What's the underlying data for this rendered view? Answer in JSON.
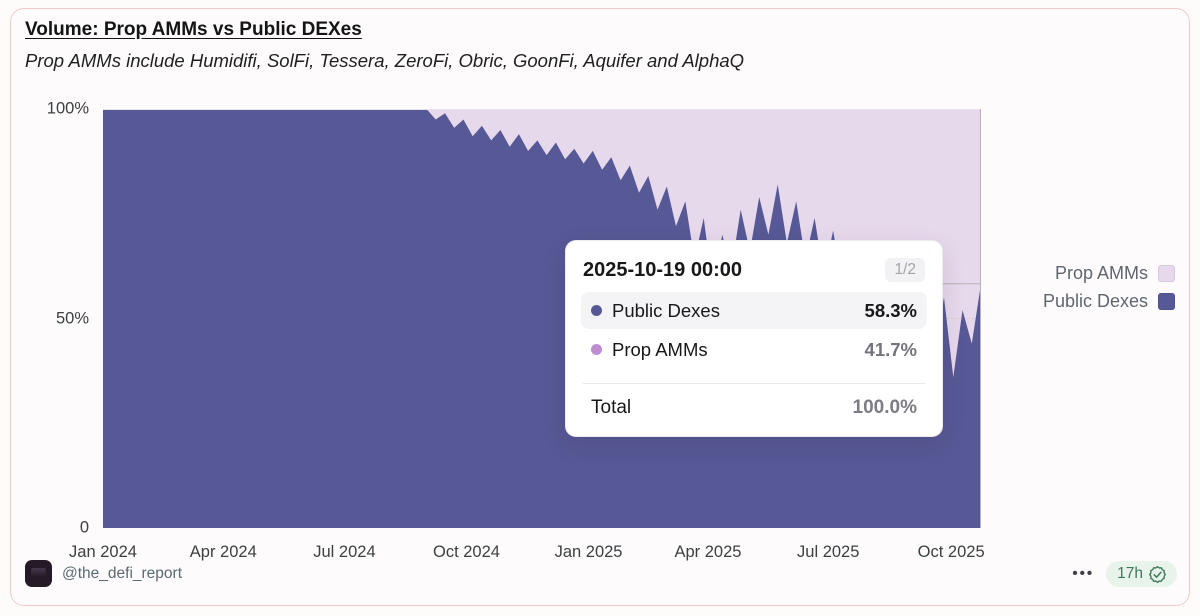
{
  "card": {
    "title": "Volume: Prop AMMs vs Public DEXes",
    "subtitle": "Prop AMMs include Humidifi, SolFi, Tessera, ZeroFi, Obric, GoonFi, Aquifer and AlphaQ"
  },
  "chart_data": {
    "type": "area",
    "stacking": "percent",
    "title": "Volume: Prop AMMs vs Public DEXes",
    "xlabel": "",
    "ylabel": "",
    "ylim": [
      0,
      100
    ],
    "grid": "50% gridline only",
    "legend_position": "right",
    "x_range": [
      "Jan 2024",
      "Oct 2025"
    ],
    "x_ticks": [
      {
        "label": "Jan 2024",
        "pos": 0.0
      },
      {
        "label": "Apr 2024",
        "pos": 0.137
      },
      {
        "label": "Jul 2024",
        "pos": 0.275
      },
      {
        "label": "Oct 2024",
        "pos": 0.414
      },
      {
        "label": "Jan 2025",
        "pos": 0.553
      },
      {
        "label": "Apr 2025",
        "pos": 0.689
      },
      {
        "label": "Jul 2025",
        "pos": 0.826
      },
      {
        "label": "Oct 2025",
        "pos": 0.966
      }
    ],
    "y_ticks": [
      {
        "label": "100%",
        "value": 100
      },
      {
        "label": "50%",
        "value": 50
      },
      {
        "label": "0",
        "value": 0
      }
    ],
    "series": [
      {
        "name": "Public Dexes",
        "color": "#575896",
        "values": [
          100,
          100,
          100,
          100,
          100,
          100,
          100,
          100,
          100,
          100,
          100,
          100,
          100,
          100,
          100,
          100,
          100,
          100,
          100,
          100,
          100,
          100,
          100,
          100,
          100,
          100,
          100,
          100,
          100,
          100,
          100,
          100,
          100,
          100,
          100,
          100,
          97.5,
          99,
          95.5,
          97.5,
          93.5,
          96,
          92.5,
          95,
          91,
          94,
          90,
          92.5,
          89,
          92,
          88,
          90.5,
          87,
          90,
          85.5,
          88.5,
          83,
          86.5,
          80,
          84,
          76,
          81.5,
          72,
          78,
          64,
          74,
          57,
          70,
          62,
          76,
          66,
          79,
          70,
          82,
          68,
          78,
          64,
          74,
          60,
          71,
          58,
          68,
          55,
          66,
          54,
          63,
          50,
          61,
          47,
          58,
          43,
          55,
          36,
          52,
          44,
          58.3
        ]
      },
      {
        "name": "Prop AMMs",
        "color": "#e7d9ec",
        "derived": "100 minus Public Dexes at every point"
      }
    ],
    "hover": {
      "x_label": "2025-10-19 00:00",
      "series": "Public Dexes",
      "value_pct": 58.3
    }
  },
  "tooltip": {
    "date": "2025-10-19 00:00",
    "page": "1/2",
    "rows": [
      {
        "label": "Public Dexes",
        "value": "58.3%",
        "color": "#575896",
        "highlight": true
      },
      {
        "label": "Prop AMMs",
        "value": "41.7%",
        "color": "#bf8ed2",
        "highlight": false
      }
    ],
    "total_label": "Total",
    "total_value": "100.0%"
  },
  "legend": {
    "items": [
      {
        "label": "Prop AMMs",
        "color": "#e7d9ec"
      },
      {
        "label": "Public Dexes",
        "color": "#575896"
      }
    ]
  },
  "footer": {
    "handle": "@the_defi_report",
    "more": "•••",
    "age": "17h"
  },
  "colors": {
    "public_dexes": "#575896",
    "prop_amms": "#e7d9ec",
    "card_border": "#f3caca",
    "age_badge_bg": "#e7f3eb",
    "age_badge_text": "#3d7a57"
  }
}
